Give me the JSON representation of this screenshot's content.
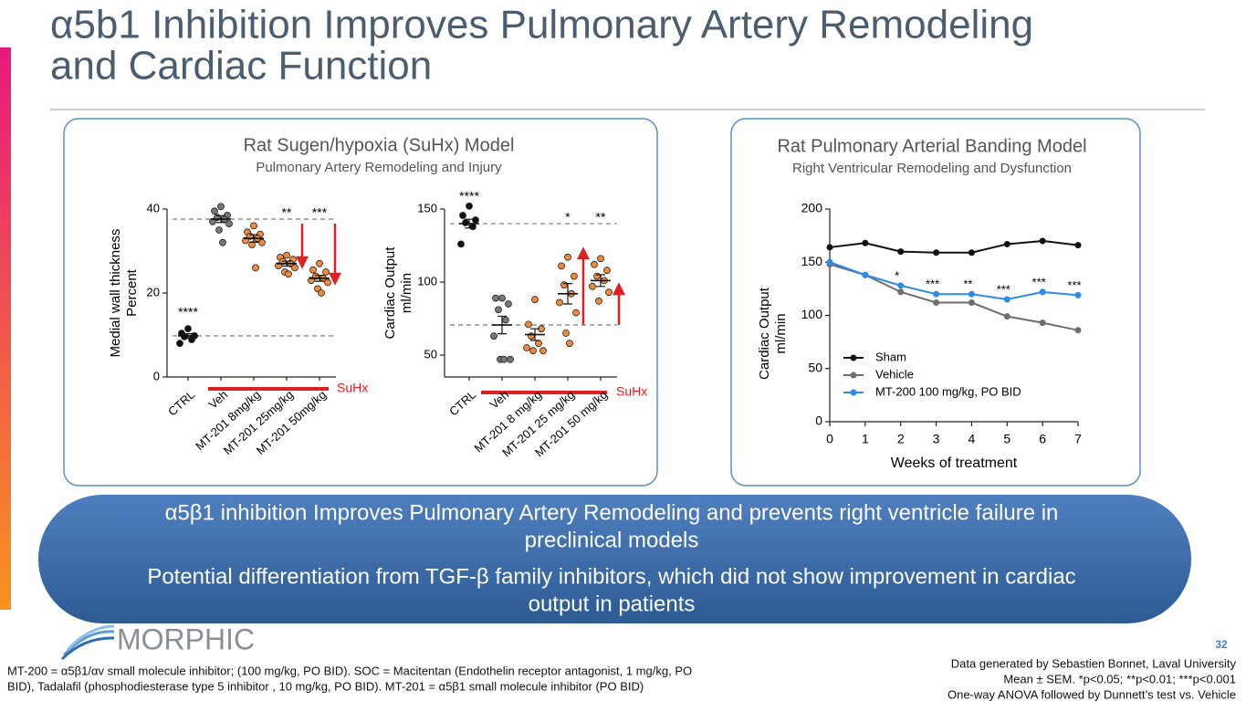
{
  "title": [
    "α5b1 Inhibition Improves Pulmonary Artery Remodeling",
    "and Cardiac Function"
  ],
  "panels": [
    {
      "title": "Rat Sugen/hypoxia (SuHx) Model",
      "subtitle": "Pulmonary Artery Remodeling and Injury"
    },
    {
      "title": "Rat Pulmonary Arterial Banding Model",
      "subtitle": "Right Ventricular Remodeling and Dysfunction"
    }
  ],
  "chart_data": [
    {
      "type": "dot",
      "ylabel": [
        "Medial wall thickness",
        "Percent"
      ],
      "ylim": [
        0,
        40
      ],
      "yticks": [
        0,
        20,
        40
      ],
      "categories": [
        "CTRL",
        "Veh",
        "MT-201 8mg/kg",
        "MT-201 25mg/kg",
        "MT-201  50mg/kg"
      ],
      "groups": [
        {
          "color": "#111111",
          "points": [
            11.5,
            10.4,
            9.8,
            9.6,
            8.9,
            8.0
          ],
          "mean": 9.8,
          "sem": 0.5
        },
        {
          "color": "#777777",
          "points": [
            40.6,
            39.5,
            38.5,
            38,
            37.5,
            37,
            36.5,
            35,
            32
          ],
          "mean": 37.6,
          "sem": 0.8
        },
        {
          "color": "#f08a3c",
          "points": [
            36,
            34.5,
            34,
            33.5,
            33,
            32.5,
            32,
            31.5,
            26
          ],
          "mean": 33,
          "sem": 0.9
        },
        {
          "color": "#f08a3c",
          "points": [
            29,
            28.5,
            28,
            27.5,
            27,
            26.5,
            26,
            25,
            24.5
          ],
          "mean": 27,
          "sem": 0.6
        },
        {
          "color": "#f08a3c",
          "points": [
            27,
            25.5,
            25,
            24,
            23.5,
            23,
            22.5,
            21,
            20
          ],
          "mean": 23.5,
          "sem": 0.7
        }
      ],
      "ref_lines": [
        37.6,
        9.8
      ],
      "annotations": [
        {
          "text": "****",
          "category": 0
        },
        {
          "text": "**",
          "category": 3
        },
        {
          "text": "***",
          "category": 4
        }
      ],
      "bracket_label": "SuHx"
    },
    {
      "type": "dot",
      "ylabel": [
        "Cardiac Output",
        "ml/min"
      ],
      "ylim": [
        35,
        150
      ],
      "yticks": [
        50,
        100,
        150
      ],
      "categories": [
        "CTRL",
        "Veh",
        "MT-201 8 mg/kg",
        "MT-201 25 mg/kg",
        "MT-201 50 mg/kg"
      ],
      "groups": [
        {
          "color": "#111111",
          "points": [
            152,
            145.6,
            142.5,
            140.6,
            138,
            126
          ],
          "mean": 140,
          "sem": 3
        },
        {
          "color": "#777777",
          "points": [
            89,
            89,
            85,
            81,
            74,
            63,
            47,
            47,
            47
          ],
          "mean": 70.6,
          "sem": 6
        },
        {
          "color": "#f08a3c",
          "points": [
            88,
            71,
            68,
            63,
            58,
            55,
            53,
            53
          ],
          "mean": 64,
          "sem": 4
        },
        {
          "color": "#f08a3c",
          "points": [
            117,
            111,
            104,
            98,
            92,
            86,
            79,
            65,
            58
          ],
          "mean": 92,
          "sem": 7
        },
        {
          "color": "#f08a3c",
          "points": [
            116,
            112,
            108,
            104,
            101,
            97,
            93,
            87
          ],
          "mean": 101,
          "sem": 4
        }
      ],
      "ref_lines": [
        140,
        70.6
      ],
      "annotations": [
        {
          "text": "****",
          "category": 0
        },
        {
          "text": "*",
          "category": 3
        },
        {
          "text": "**",
          "category": 4
        }
      ],
      "bracket_label": "SuHx"
    },
    {
      "type": "line",
      "ylabel": [
        "Cardiac Output",
        "ml/min"
      ],
      "xlabel": "Weeks of treatment",
      "xlim": [
        0,
        7
      ],
      "xticks": [
        0,
        1,
        2,
        3,
        4,
        5,
        6,
        7
      ],
      "ylim": [
        0,
        200
      ],
      "yticks": [
        0,
        50,
        100,
        150,
        200
      ],
      "x": [
        0,
        1,
        2,
        3,
        4,
        5,
        6,
        7
      ],
      "series": [
        {
          "name": "Sham",
          "color": "#111111",
          "values": [
            164,
            168,
            160,
            159,
            159,
            167,
            170,
            166
          ]
        },
        {
          "name": "Vehicle",
          "color": "#6e6e6e",
          "values": [
            148,
            138,
            122,
            112,
            112,
            99,
            93,
            86
          ]
        },
        {
          "name": "MT-200 100 mg/kg, PO BID",
          "color": "#2e8be6",
          "values": [
            150,
            138,
            128,
            120,
            120,
            115,
            122,
            119
          ]
        }
      ],
      "annotations": [
        {
          "text": "*",
          "x": 2
        },
        {
          "text": "***",
          "x": 3
        },
        {
          "text": "**",
          "x": 4
        },
        {
          "text": "***",
          "x": 5
        },
        {
          "text": "***",
          "x": 6
        },
        {
          "text": "***",
          "x": 7
        }
      ]
    }
  ],
  "banner": [
    "α5β1 inhibition Improves Pulmonary Artery Remodeling and prevents right ventricle failure in",
    "preclinical models",
    "Potential differentiation from TGF-β family inhibitors, which did not show improvement in cardiac",
    "output in patients"
  ],
  "logo": "MORPHIC",
  "page_number": "32",
  "footnote": [
    "MT-200 = α5β1/αv small molecule inhibitor; (100 mg/kg, PO BID). SOC = Macitentan (Endothelin receptor antagonist, 1 mg/kg, PO",
    "BID), Tadalafil (phosphodiesterase type 5 inhibitor , 10 mg/kg, PO BID). MT-201 = α5β1 small molecule inhibitor (PO BID)"
  ],
  "notes": [
    "Data generated by Sebastien Bonnet, Laval University",
    "Mean ± SEM. *p<0.05; **p<0.01; ***p<0.001",
    "One-way ANOVA followed by Dunnett’s test vs. Vehicle"
  ]
}
